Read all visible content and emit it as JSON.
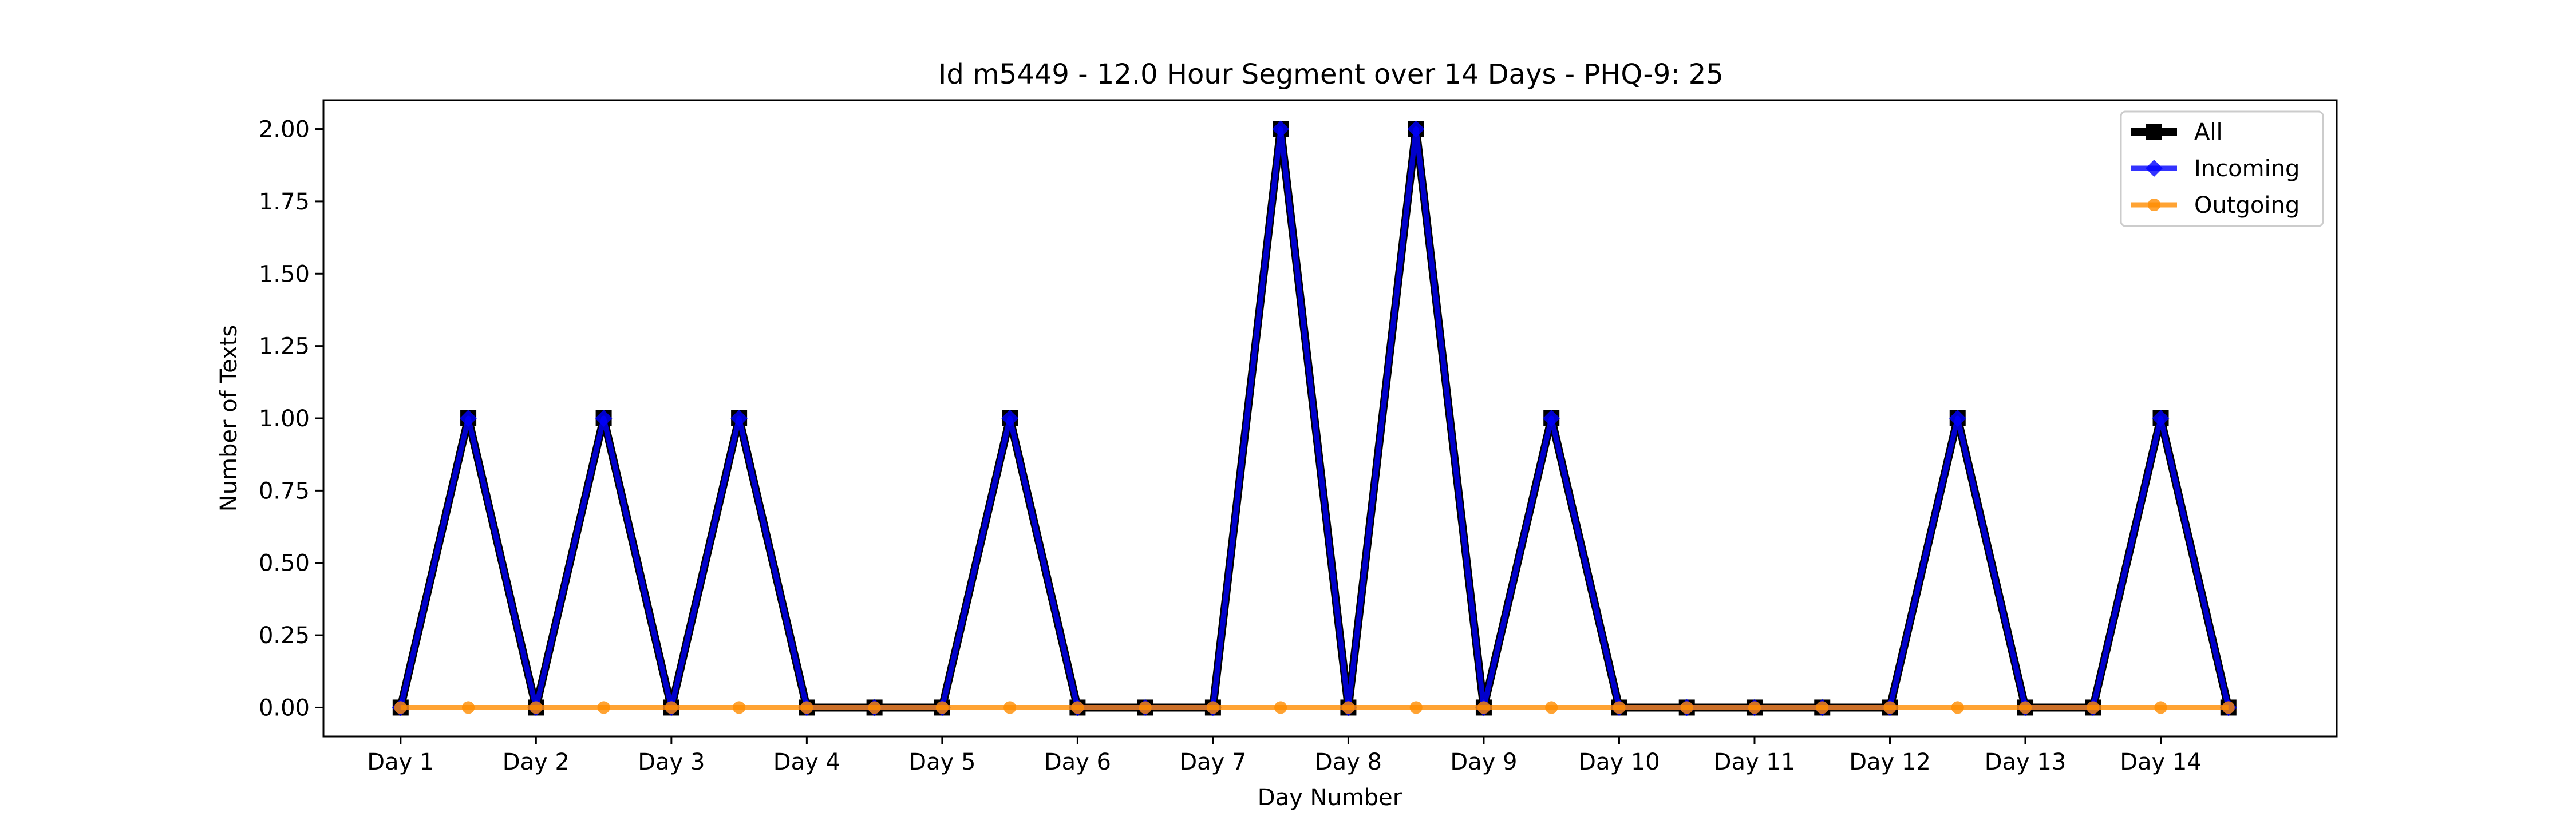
{
  "chart_data": {
    "type": "line",
    "title": "Id m5449 - 12.0 Hour Segment over 14 Days - PHQ-9: 25",
    "xlabel": "Day Number",
    "ylabel": "Number of Texts",
    "x": [
      1,
      1.5,
      2,
      2.5,
      3,
      3.5,
      4,
      4.5,
      5,
      5.5,
      6,
      6.5,
      7,
      7.5,
      8,
      8.5,
      9,
      9.5,
      10,
      10.5,
      11,
      11.5,
      12,
      12.5,
      13,
      13.5,
      14,
      14.5
    ],
    "xticks": [
      {
        "value": 1,
        "label": "Day 1"
      },
      {
        "value": 2,
        "label": "Day 2"
      },
      {
        "value": 3,
        "label": "Day 3"
      },
      {
        "value": 4,
        "label": "Day 4"
      },
      {
        "value": 5,
        "label": "Day 5"
      },
      {
        "value": 6,
        "label": "Day 6"
      },
      {
        "value": 7,
        "label": "Day 7"
      },
      {
        "value": 8,
        "label": "Day 8"
      },
      {
        "value": 9,
        "label": "Day 9"
      },
      {
        "value": 10,
        "label": "Day 10"
      },
      {
        "value": 11,
        "label": "Day 11"
      },
      {
        "value": 12,
        "label": "Day 12"
      },
      {
        "value": 13,
        "label": "Day 13"
      },
      {
        "value": 14,
        "label": "Day 14"
      }
    ],
    "yticks": [
      {
        "value": 0,
        "label": "0.00"
      },
      {
        "value": 0.25,
        "label": "0.25"
      },
      {
        "value": 0.5,
        "label": "0.50"
      },
      {
        "value": 0.75,
        "label": "0.75"
      },
      {
        "value": 1,
        "label": "1.00"
      },
      {
        "value": 1.25,
        "label": "1.25"
      },
      {
        "value": 1.5,
        "label": "1.50"
      },
      {
        "value": 1.75,
        "label": "1.75"
      },
      {
        "value": 2,
        "label": "2.00"
      }
    ],
    "xlim": [
      0.43,
      15.3
    ],
    "ylim": [
      -0.1,
      2.1
    ],
    "grid": false,
    "legend_position": "top-right",
    "series": [
      {
        "name": "All",
        "color": "#000000",
        "marker": "square",
        "values": [
          0,
          1,
          0,
          1,
          0,
          1,
          0,
          0,
          0,
          1,
          0,
          0,
          0,
          2,
          0,
          2,
          0,
          1,
          0,
          0,
          0,
          0,
          0,
          1,
          0,
          0,
          1,
          0
        ]
      },
      {
        "name": "Incoming",
        "color": "#0000ff",
        "marker": "diamond",
        "values": [
          0,
          1,
          0,
          1,
          0,
          1,
          0,
          0,
          0,
          1,
          0,
          0,
          0,
          2,
          0,
          2,
          0,
          1,
          0,
          0,
          0,
          0,
          0,
          1,
          0,
          0,
          1,
          0
        ]
      },
      {
        "name": "Outgoing",
        "color": "#ff8c00",
        "marker": "circle",
        "values": [
          0,
          0,
          0,
          0,
          0,
          0,
          0,
          0,
          0,
          0,
          0,
          0,
          0,
          0,
          0,
          0,
          0,
          0,
          0,
          0,
          0,
          0,
          0,
          0,
          0,
          0,
          0,
          0
        ]
      }
    ]
  }
}
